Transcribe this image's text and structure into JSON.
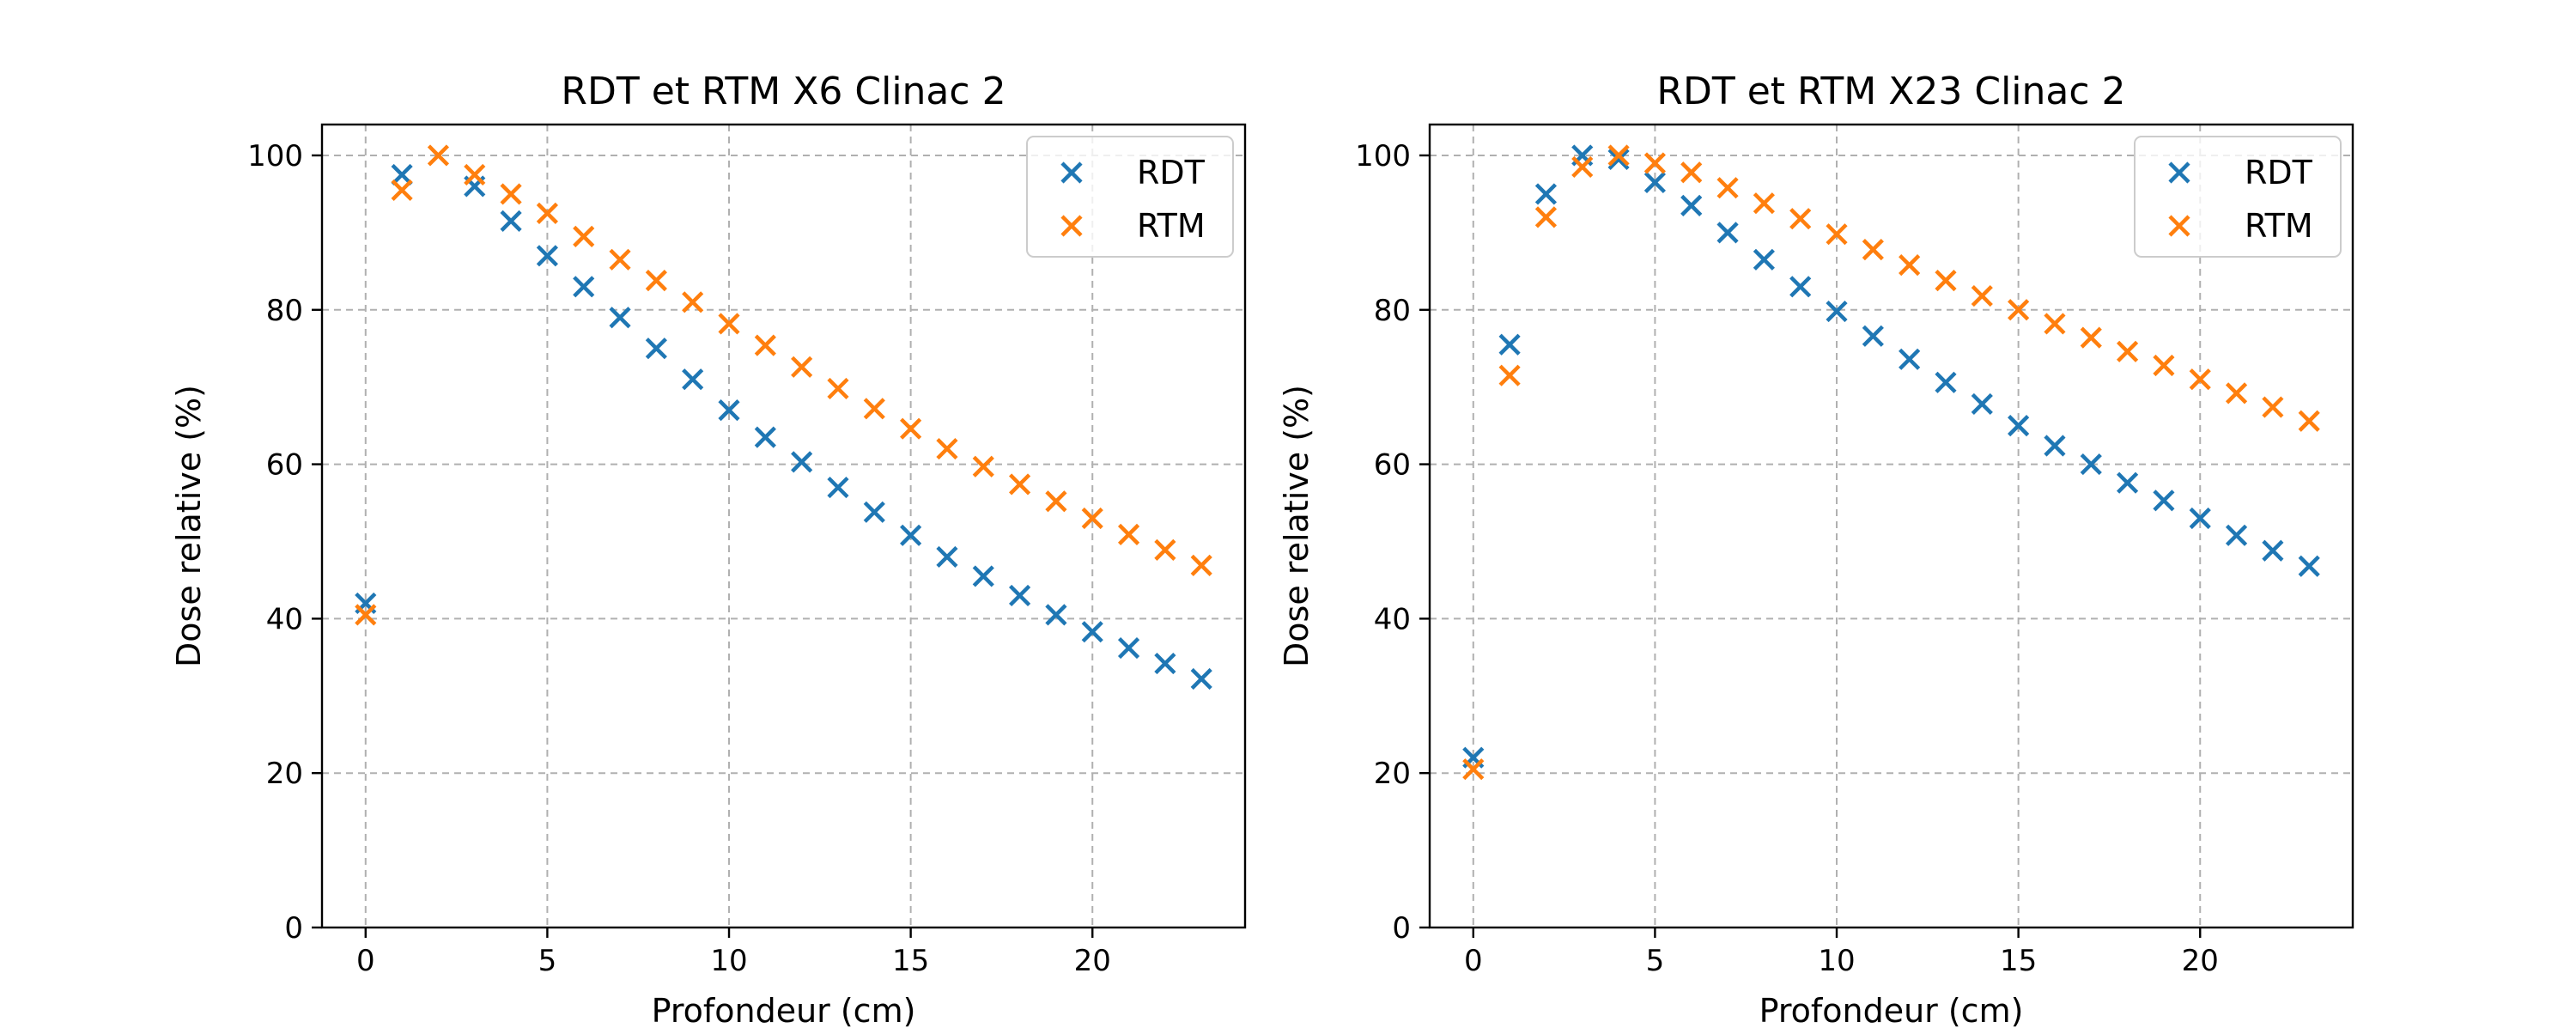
{
  "colors": {
    "series_1": "#1f77b4",
    "series_2": "#ff7f0e",
    "grid": "#b0b0b0",
    "axis": "#000000"
  },
  "chart_data": [
    {
      "type": "scatter",
      "marker": "x",
      "title": "RDT et RTM X6 Clinac 2",
      "xlabel": "Profondeur (cm)",
      "ylabel": "Dose relative (%)",
      "xlim": [
        -1.2,
        24.2
      ],
      "ylim": [
        0,
        104
      ],
      "xticks": [
        0,
        5,
        10,
        15,
        20
      ],
      "yticks": [
        0,
        20,
        40,
        60,
        80,
        100
      ],
      "grid": true,
      "legend_position": "top-right",
      "series": [
        {
          "name": "RDT",
          "color": "#1f77b4",
          "x": [
            0,
            1,
            3,
            4,
            5,
            6,
            7,
            8,
            9,
            10,
            11,
            12,
            13,
            14,
            15,
            16,
            17,
            18,
            19,
            20,
            21,
            22,
            23
          ],
          "y": [
            42,
            97.5,
            96,
            91.5,
            87,
            83,
            79,
            75,
            71,
            67,
            63.5,
            60.3,
            57,
            53.8,
            50.8,
            48,
            45.5,
            43,
            40.5,
            38.3,
            36.2,
            34.2,
            32.2
          ]
        },
        {
          "name": "RTM",
          "color": "#ff7f0e",
          "x": [
            0,
            1,
            2,
            3,
            4,
            5,
            6,
            7,
            8,
            9,
            10,
            11,
            12,
            13,
            14,
            15,
            16,
            17,
            18,
            19,
            20,
            21,
            22,
            23
          ],
          "y": [
            40.5,
            95.5,
            100,
            97.5,
            95,
            92.5,
            89.5,
            86.5,
            83.8,
            81,
            78.2,
            75.4,
            72.6,
            69.8,
            67.2,
            64.6,
            62,
            59.7,
            57.4,
            55.2,
            53,
            50.9,
            48.9,
            46.9
          ]
        }
      ]
    },
    {
      "type": "scatter",
      "marker": "x",
      "title": "RDT et RTM X23 Clinac 2",
      "xlabel": "Profondeur (cm)",
      "ylabel": "Dose relative (%)",
      "xlim": [
        -1.2,
        24.2
      ],
      "ylim": [
        0,
        104
      ],
      "xticks": [
        0,
        5,
        10,
        15,
        20
      ],
      "yticks": [
        0,
        20,
        40,
        60,
        80,
        100
      ],
      "grid": true,
      "legend_position": "top-right",
      "series": [
        {
          "name": "RDT",
          "color": "#1f77b4",
          "x": [
            0,
            1,
            2,
            3,
            4,
            5,
            6,
            7,
            8,
            9,
            10,
            11,
            12,
            13,
            14,
            15,
            16,
            17,
            18,
            19,
            20,
            21,
            22,
            23
          ],
          "y": [
            22,
            75.5,
            95,
            100,
            99.5,
            96.5,
            93.5,
            90,
            86.5,
            83,
            79.8,
            76.6,
            73.6,
            70.6,
            67.8,
            65,
            62.4,
            60,
            57.6,
            55.3,
            53,
            50.8,
            48.8,
            46.8
          ]
        },
        {
          "name": "RTM",
          "color": "#ff7f0e",
          "x": [
            0,
            1,
            2,
            3,
            4,
            5,
            6,
            7,
            8,
            9,
            10,
            11,
            12,
            13,
            14,
            15,
            16,
            17,
            18,
            19,
            20,
            21,
            22,
            23
          ],
          "y": [
            20.5,
            71.5,
            92,
            98.5,
            100,
            99,
            97.8,
            95.8,
            93.8,
            91.8,
            89.8,
            87.8,
            85.8,
            83.8,
            81.8,
            80,
            78.2,
            76.4,
            74.6,
            72.8,
            71,
            69.2,
            67.4,
            65.6
          ]
        }
      ]
    }
  ]
}
